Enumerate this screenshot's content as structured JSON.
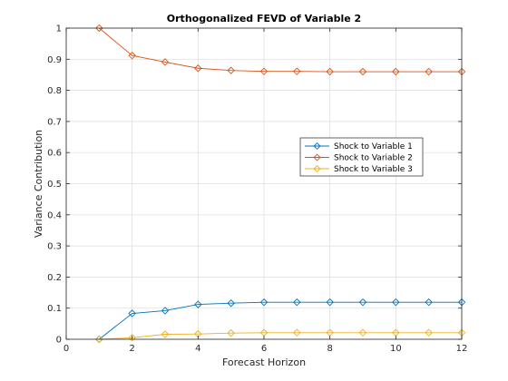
{
  "chart_data": {
    "type": "line",
    "title": "Orthogonalized FEVD of Variable 2",
    "xlabel": "Forecast Horizon",
    "ylabel": "Variance Contribution",
    "xlim": [
      0,
      12
    ],
    "ylim": [
      0,
      1
    ],
    "x_ticks": [
      "0",
      "2",
      "4",
      "6",
      "8",
      "10",
      "12"
    ],
    "y_ticks": [
      "0",
      "0.1",
      "0.2",
      "0.3",
      "0.4",
      "0.5",
      "0.6",
      "0.7",
      "0.8",
      "0.9",
      "1"
    ],
    "grid": true,
    "legend_position": "right",
    "x": [
      1,
      2,
      3,
      4,
      5,
      6,
      7,
      8,
      9,
      10,
      11,
      12
    ],
    "series": [
      {
        "name": "Shock to Variable 1",
        "color": "#0072BD",
        "marker": "diamond",
        "values": [
          0,
          0.083,
          0.092,
          0.112,
          0.116,
          0.119,
          0.119,
          0.119,
          0.119,
          0.119,
          0.119,
          0.119
        ]
      },
      {
        "name": "Shock to Variable 2",
        "color": "#D95319",
        "marker": "diamond",
        "values": [
          1,
          0.912,
          0.891,
          0.871,
          0.864,
          0.861,
          0.861,
          0.86,
          0.86,
          0.86,
          0.86,
          0.86
        ]
      },
      {
        "name": "Shock to Variable 3",
        "color": "#EDB120",
        "marker": "diamond",
        "values": [
          0,
          0.005,
          0.016,
          0.017,
          0.02,
          0.021,
          0.021,
          0.021,
          0.021,
          0.021,
          0.021,
          0.021
        ]
      }
    ]
  }
}
